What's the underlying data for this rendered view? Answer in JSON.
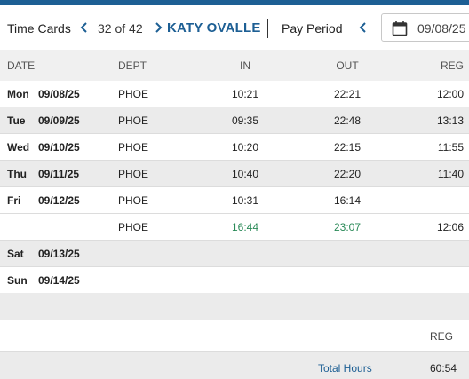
{
  "header": {
    "title": "Time Cards",
    "counter": "32 of 42",
    "employee_name": "KATY OVALLE",
    "pay_period_label": "Pay Period",
    "pay_period_date": "09/08/25",
    "icons": {
      "prev": "chevron-left-icon",
      "next": "chevron-right-icon",
      "calendar": "calendar-icon"
    }
  },
  "columns": {
    "date": "DATE",
    "dept": "DEPT",
    "in": "IN",
    "out": "OUT",
    "reg": "REG"
  },
  "rows": [
    {
      "day": "Mon",
      "date": "09/08/25",
      "dept": "PHOE",
      "in": "10:21",
      "out": "22:21",
      "reg": "12:00"
    },
    {
      "day": "Tue",
      "date": "09/09/25",
      "dept": "PHOE",
      "in": "09:35",
      "out": "22:48",
      "reg": "13:13"
    },
    {
      "day": "Wed",
      "date": "09/10/25",
      "dept": "PHOE",
      "in": "10:20",
      "out": "22:15",
      "reg": "11:55"
    },
    {
      "day": "Thu",
      "date": "09/11/25",
      "dept": "PHOE",
      "in": "10:40",
      "out": "22:20",
      "reg": "11:40"
    },
    {
      "day": "Fri",
      "date": "09/12/25",
      "dept": "PHOE",
      "in": "10:31",
      "out": "16:14",
      "reg": ""
    },
    {
      "day": "",
      "date": "",
      "dept": "PHOE",
      "in": "16:44",
      "out": "23:07",
      "reg": "12:06"
    },
    {
      "day": "Sat",
      "date": "09/13/25",
      "dept": "",
      "in": "",
      "out": "",
      "reg": ""
    },
    {
      "day": "Sun",
      "date": "09/14/25",
      "dept": "",
      "in": "",
      "out": "",
      "reg": ""
    }
  ],
  "summary": {
    "reg_label": "REG",
    "total_label": "Total Hours",
    "total_value": "60:54"
  },
  "colors": {
    "accent": "#1d5f94",
    "edited_punch": "#2a8a58"
  }
}
